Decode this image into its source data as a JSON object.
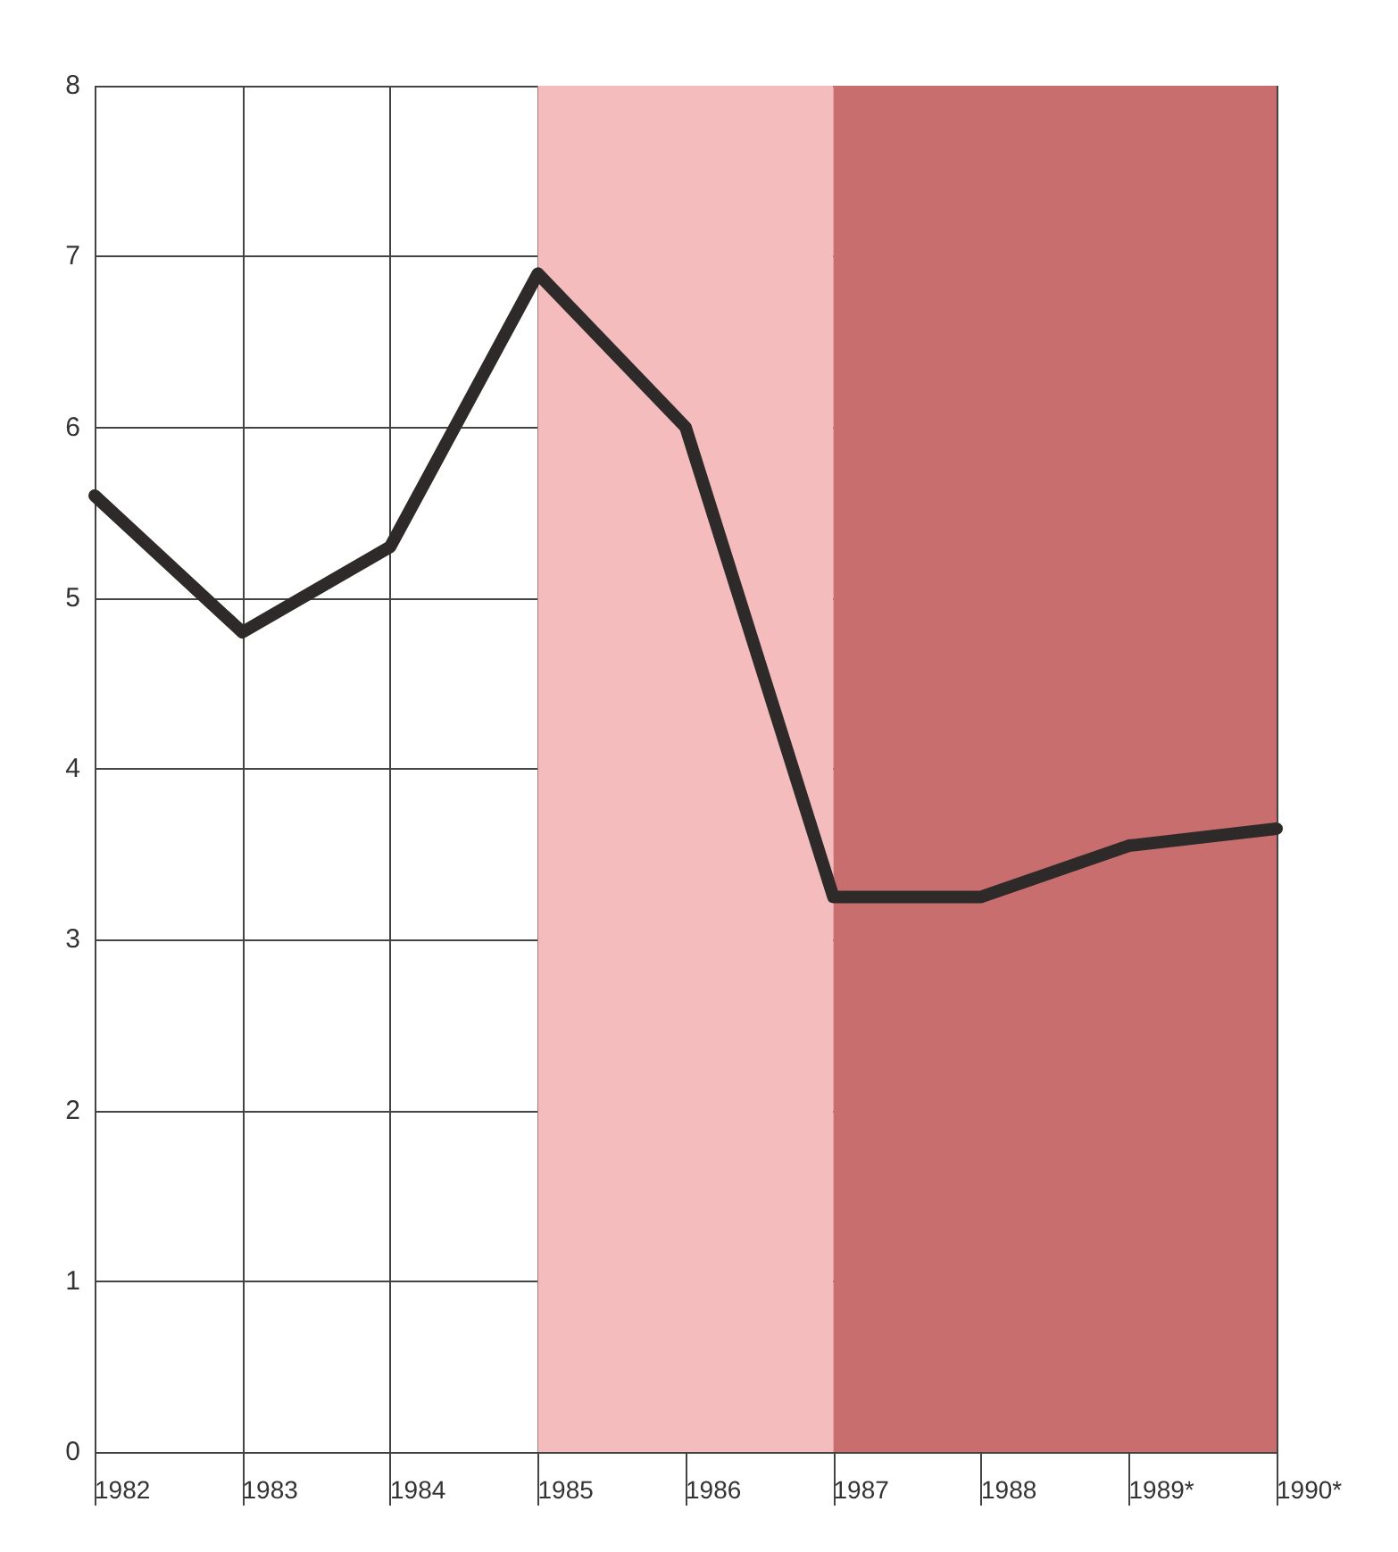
{
  "chart_data": {
    "type": "line",
    "categories": [
      "1982",
      "1983",
      "1984",
      "1985",
      "1986",
      "1987",
      "1988",
      "1989*",
      "1990*"
    ],
    "series": [
      {
        "color": "#2e2a2a",
        "values": [
          5.6,
          4.8,
          5.3,
          6.9,
          6.0,
          3.25,
          3.25,
          3.55,
          3.65
        ]
      }
    ],
    "ylim": [
      0,
      8
    ],
    "yticks": [
      0,
      1,
      2,
      3,
      4,
      5,
      6,
      7,
      8
    ],
    "bands": [
      {
        "axis": "x",
        "from": "1985",
        "to": "1987",
        "color": "#f4bcbc"
      },
      {
        "axis": "x",
        "from": "1987",
        "to": "1990*",
        "color": "#c96e6e"
      }
    ],
    "grid": true,
    "marker": "none",
    "line_style": "solid"
  }
}
